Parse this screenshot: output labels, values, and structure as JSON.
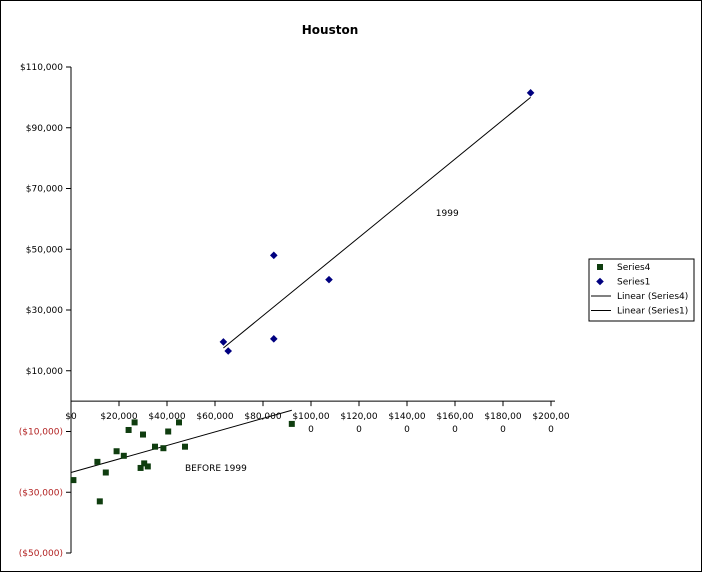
{
  "chart_data": {
    "type": "scatter",
    "title": "Houston",
    "xlim": [
      0,
      200000
    ],
    "ylim": [
      -50000,
      110000
    ],
    "x_ticks": [
      {
        "v": 0,
        "l1": "$0",
        "l2": ""
      },
      {
        "v": 20000,
        "l1": "$20,000",
        "l2": ""
      },
      {
        "v": 40000,
        "l1": "$40,000",
        "l2": ""
      },
      {
        "v": 60000,
        "l1": "$60,000",
        "l2": ""
      },
      {
        "v": 80000,
        "l1": "$80,000",
        "l2": ""
      },
      {
        "v": 100000,
        "l1": "$100,00",
        "l2": "0"
      },
      {
        "v": 120000,
        "l1": "$120,00",
        "l2": "0"
      },
      {
        "v": 140000,
        "l1": "$140,00",
        "l2": "0"
      },
      {
        "v": 160000,
        "l1": "$160,00",
        "l2": "0"
      },
      {
        "v": 180000,
        "l1": "$180,00",
        "l2": "0"
      },
      {
        "v": 200000,
        "l1": "$200,00",
        "l2": "0"
      }
    ],
    "y_ticks": [
      {
        "v": 110000,
        "l": "$110,000",
        "neg": false
      },
      {
        "v": 90000,
        "l": "$90,000",
        "neg": false
      },
      {
        "v": 70000,
        "l": "$70,000",
        "neg": false
      },
      {
        "v": 50000,
        "l": "$50,000",
        "neg": false
      },
      {
        "v": 30000,
        "l": "$30,000",
        "neg": false
      },
      {
        "v": 10000,
        "l": "$10,000",
        "neg": false
      },
      {
        "v": -10000,
        "l": "($10,000)",
        "neg": true
      },
      {
        "v": -30000,
        "l": "($30,000)",
        "neg": true
      },
      {
        "v": -50000,
        "l": "($50,000)",
        "neg": true
      }
    ],
    "negative_label_color": "#b22222",
    "series": [
      {
        "name": "Series4",
        "marker": "square",
        "color": "#0f3d0f",
        "points": [
          [
            1000,
            -26000
          ],
          [
            11000,
            -20000
          ],
          [
            12000,
            -33000
          ],
          [
            14500,
            -23500
          ],
          [
            19000,
            -16500
          ],
          [
            22000,
            -18000
          ],
          [
            24000,
            -9500
          ],
          [
            26500,
            -7000
          ],
          [
            29000,
            -22000
          ],
          [
            30000,
            -11000
          ],
          [
            30500,
            -20500
          ],
          [
            32000,
            -21500
          ],
          [
            35000,
            -15000
          ],
          [
            38500,
            -15500
          ],
          [
            40500,
            -10000
          ],
          [
            45000,
            -7000
          ],
          [
            47500,
            -15000
          ],
          [
            92000,
            -7500
          ]
        ]
      },
      {
        "name": "Series1",
        "marker": "diamond",
        "color": "#000080",
        "points": [
          [
            63500,
            19500
          ],
          [
            65500,
            16500
          ],
          [
            84500,
            48000
          ],
          [
            84500,
            20500
          ],
          [
            107500,
            40000
          ],
          [
            191500,
            101500
          ]
        ]
      }
    ],
    "trendlines": [
      {
        "name": "Linear (Series4)",
        "x": [
          0,
          92000
        ],
        "y": [
          -23500,
          -3000
        ]
      },
      {
        "name": "Linear (Series1)",
        "x": [
          63500,
          191500
        ],
        "y": [
          17500,
          100000
        ]
      }
    ],
    "annotations": [
      {
        "text": "1999",
        "x": 152000,
        "y": 61000
      },
      {
        "text": "BEFORE 1999",
        "x": 47500,
        "y": -23000
      }
    ],
    "legend": {
      "position": "right",
      "entries": [
        {
          "label": "Series4",
          "kind": "square",
          "color": "#0f3d0f"
        },
        {
          "label": "Series1",
          "kind": "diamond",
          "color": "#000080"
        },
        {
          "label": "Linear (Series4)",
          "kind": "line",
          "color": "#000000"
        },
        {
          "label": "Linear (Series1)",
          "kind": "line",
          "color": "#000000"
        }
      ]
    }
  }
}
